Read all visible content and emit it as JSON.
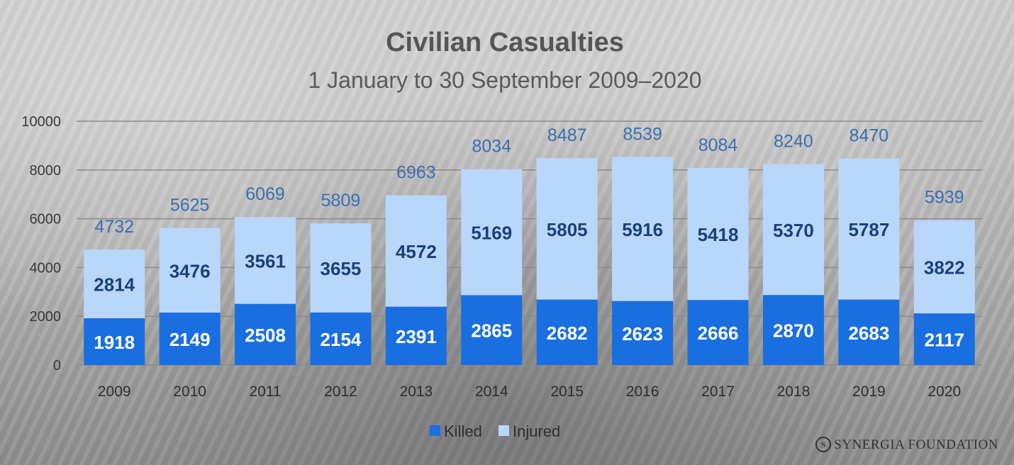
{
  "chart_data": {
    "type": "bar",
    "stacked": true,
    "title": "Civilian Casualties",
    "subtitle": "1 January to 30 September 2009–2020",
    "categories": [
      "2009",
      "2010",
      "2011",
      "2012",
      "2013",
      "2014",
      "2015",
      "2016",
      "2017",
      "2018",
      "2019",
      "2020"
    ],
    "series": [
      {
        "name": "Killed",
        "color": "#1a6fe0",
        "values": [
          1918,
          2149,
          2508,
          2154,
          2391,
          2865,
          2682,
          2623,
          2666,
          2870,
          2683,
          2117
        ]
      },
      {
        "name": "Injured",
        "color": "#b9d7fb",
        "values": [
          2814,
          3476,
          3561,
          3655,
          4572,
          5169,
          5805,
          5916,
          5418,
          5370,
          5787,
          3822
        ]
      }
    ],
    "totals": [
      4732,
      5625,
      6069,
      5809,
      6963,
      8034,
      8487,
      8539,
      8084,
      8240,
      8470,
      5939
    ],
    "ylim": [
      0,
      10000
    ],
    "yticks": [
      0,
      2000,
      4000,
      6000,
      8000,
      10000
    ],
    "grid": true,
    "legend": "bottom-center",
    "xlabel": "",
    "ylabel": ""
  },
  "branding": {
    "mark": "S",
    "text": "SYNERGIA FOUNDATION"
  },
  "colors": {
    "killed": "#1a6fe0",
    "injured": "#b9d7fb"
  }
}
